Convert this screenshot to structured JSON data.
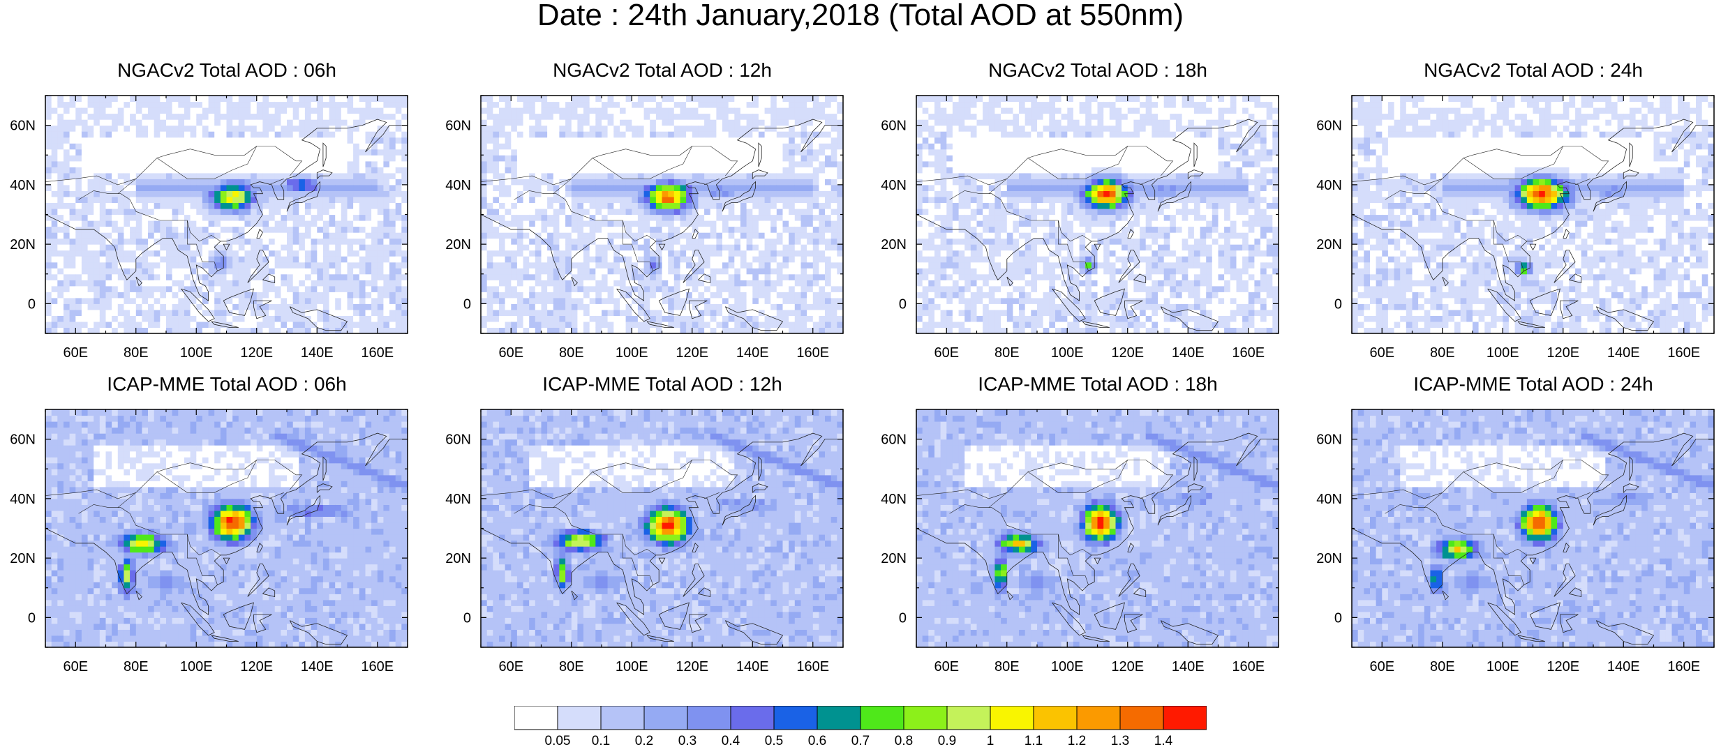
{
  "figure": {
    "title": "Date : 24th January,2018 (Total AOD at 550nm)"
  },
  "axes": {
    "lon_range": [
      50,
      170
    ],
    "lat_range": [
      -10,
      70
    ],
    "lon_ticks": [
      60,
      80,
      100,
      120,
      140,
      160
    ],
    "lon_tick_labels": [
      "60E",
      "80E",
      "100E",
      "120E",
      "140E",
      "160E"
    ],
    "lat_ticks": [
      0,
      20,
      40,
      60
    ],
    "lat_tick_labels": [
      "0",
      "20N",
      "40N",
      "60N"
    ]
  },
  "colorbar": {
    "colors": [
      "#ffffff",
      "#d5ddfb",
      "#b5c3f7",
      "#95aaf3",
      "#7f92f0",
      "#6a6ceb",
      "#1a62e6",
      "#009290",
      "#4fe81a",
      "#8cf01a",
      "#c4f25a",
      "#f9f500",
      "#fbc300",
      "#fb9a00",
      "#f56b00",
      "#ff1a00"
    ],
    "labels": [
      "0.05",
      "0.1",
      "0.2",
      "0.3",
      "0.4",
      "0.5",
      "0.6",
      "0.7",
      "0.8",
      "0.9",
      "1",
      "1.1",
      "1.2",
      "1.3",
      "1.4"
    ]
  },
  "panels": [
    {
      "title": "NGACv2 Total AOD : 06h",
      "model": "NGACv2",
      "hour": "06h",
      "row": 0,
      "col": 0,
      "plumes": [
        {
          "lon": 112,
          "lat": 36,
          "rx": 7,
          "ry": 4.5,
          "peak": 11
        },
        {
          "lon": 108,
          "lat": 14,
          "rx": 3,
          "ry": 3,
          "peak": 5
        },
        {
          "lon": 135,
          "lat": 40,
          "rx": 6,
          "ry": 2.5,
          "peak": 7
        }
      ]
    },
    {
      "title": "NGACv2 Total AOD : 12h",
      "model": "NGACv2",
      "hour": "12h",
      "row": 0,
      "col": 1,
      "plumes": [
        {
          "lon": 112,
          "lat": 36,
          "rx": 7,
          "ry": 4.5,
          "peak": 14
        },
        {
          "lon": 107,
          "lat": 13,
          "rx": 2.5,
          "ry": 2.5,
          "peak": 5
        },
        {
          "lon": 130,
          "lat": 38,
          "rx": 8,
          "ry": 2.5,
          "peak": 4
        }
      ]
    },
    {
      "title": "NGACv2 Total AOD : 18h",
      "model": "NGACv2",
      "hour": "18h",
      "row": 0,
      "col": 2,
      "plumes": [
        {
          "lon": 113,
          "lat": 37,
          "rx": 7,
          "ry": 4.5,
          "peak": 15
        },
        {
          "lon": 107,
          "lat": 13,
          "rx": 2.5,
          "ry": 2.5,
          "peak": 7
        },
        {
          "lon": 132,
          "lat": 38,
          "rx": 8,
          "ry": 2.5,
          "peak": 4
        }
      ]
    },
    {
      "title": "NGACv2 Total AOD : 24h",
      "model": "NGACv2",
      "hour": "24h",
      "row": 0,
      "col": 3,
      "plumes": [
        {
          "lon": 113,
          "lat": 37,
          "rx": 8,
          "ry": 5,
          "peak": 15
        },
        {
          "lon": 107,
          "lat": 12,
          "rx": 2.5,
          "ry": 2.5,
          "peak": 8
        },
        {
          "lon": 135,
          "lat": 38,
          "rx": 10,
          "ry": 2.5,
          "peak": 4
        }
      ]
    },
    {
      "title": "ICAP-MME Total AOD : 06h",
      "model": "ICAP-MME",
      "hour": "06h",
      "row": 1,
      "col": 0,
      "plumes": [
        {
          "lon": 112,
          "lat": 32,
          "rx": 7,
          "ry": 6,
          "peak": 15
        },
        {
          "lon": 82,
          "lat": 25,
          "rx": 8,
          "ry": 3.5,
          "peak": 11
        },
        {
          "lon": 77,
          "lat": 14,
          "rx": 2.5,
          "ry": 6,
          "peak": 10
        },
        {
          "lon": 140,
          "lat": 36,
          "rx": 16,
          "ry": 2.5,
          "peak": 5
        }
      ]
    },
    {
      "title": "ICAP-MME Total AOD : 12h",
      "model": "ICAP-MME",
      "hour": "12h",
      "row": 1,
      "col": 1,
      "plumes": [
        {
          "lon": 112,
          "lat": 31,
          "rx": 7,
          "ry": 6,
          "peak": 15
        },
        {
          "lon": 83,
          "lat": 26,
          "rx": 8,
          "ry": 3.5,
          "peak": 11
        },
        {
          "lon": 77,
          "lat": 15,
          "rx": 2.5,
          "ry": 6,
          "peak": 9
        },
        {
          "lon": 138,
          "lat": 38,
          "rx": 14,
          "ry": 2.5,
          "peak": 4
        }
      ]
    },
    {
      "title": "ICAP-MME Total AOD : 18h",
      "model": "ICAP-MME",
      "hour": "18h",
      "row": 1,
      "col": 2,
      "plumes": [
        {
          "lon": 111,
          "lat": 32,
          "rx": 6,
          "ry": 6,
          "peak": 15
        },
        {
          "lon": 84,
          "lat": 25,
          "rx": 7,
          "ry": 3.5,
          "peak": 11
        },
        {
          "lon": 78,
          "lat": 15,
          "rx": 2.5,
          "ry": 6,
          "peak": 9
        },
        {
          "lon": 140,
          "lat": 40,
          "rx": 14,
          "ry": 2.5,
          "peak": 4
        }
      ]
    },
    {
      "title": "ICAP-MME Total AOD : 24h",
      "model": "ICAP-MME",
      "hour": "24h",
      "row": 1,
      "col": 3,
      "plumes": [
        {
          "lon": 112,
          "lat": 32,
          "rx": 6,
          "ry": 6,
          "peak": 15
        },
        {
          "lon": 85,
          "lat": 23,
          "rx": 7,
          "ry": 3.5,
          "peak": 11
        },
        {
          "lon": 78,
          "lat": 13,
          "rx": 2.5,
          "ry": 5,
          "peak": 8
        },
        {
          "lon": 142,
          "lat": 40,
          "rx": 14,
          "ry": 2.5,
          "peak": 4
        }
      ]
    }
  ]
}
